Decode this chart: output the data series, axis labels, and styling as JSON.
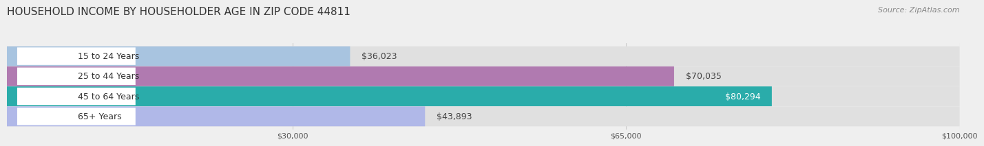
{
  "title": "HOUSEHOLD INCOME BY HOUSEHOLDER AGE IN ZIP CODE 44811",
  "source": "Source: ZipAtlas.com",
  "categories": [
    "15 to 24 Years",
    "25 to 44 Years",
    "45 to 64 Years",
    "65+ Years"
  ],
  "values": [
    36023,
    70035,
    80294,
    43893
  ],
  "bar_colors": [
    "#a8c4e0",
    "#b07ab0",
    "#2aacaa",
    "#b0b8e8"
  ],
  "bar_label_colors": [
    "#333333",
    "#333333",
    "#ffffff",
    "#333333"
  ],
  "xlim": [
    0,
    100000
  ],
  "xticks": [
    30000,
    65000,
    100000
  ],
  "xtick_labels": [
    "$30,000",
    "$65,000",
    "$100,000"
  ],
  "background_color": "#efefef",
  "bar_bg_color": "#e0e0e0",
  "label_bg_color": "#ffffff",
  "title_fontsize": 11,
  "source_fontsize": 8,
  "bar_height": 0.52,
  "label_fontsize": 9,
  "category_fontsize": 9
}
